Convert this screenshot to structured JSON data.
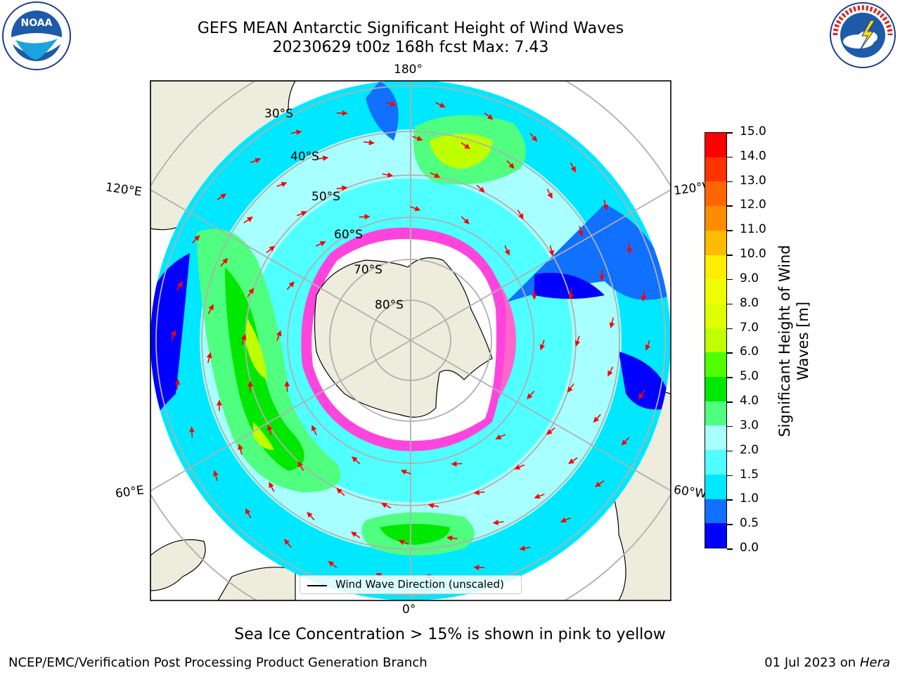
{
  "title": {
    "line1": "GEFS MEAN Antarctic Significant Height of Wind Waves",
    "line2": "20230629 t00z 168h fcst   Max: 7.43"
  },
  "logos": {
    "left": "noaa-logo",
    "right": "national-weather-service-logo"
  },
  "map": {
    "longitude_labels": [
      "180°",
      "120°E",
      "120°W",
      "60°E",
      "60°W",
      "0°"
    ],
    "latitude_labels": [
      "30°S",
      "40°S",
      "50°S",
      "60°S",
      "70°S",
      "80°S"
    ],
    "ocean_color": "#ffffff",
    "land_color": "#eeecdc"
  },
  "colorbar": {
    "label": "Significant Height of Wind Waves [m]",
    "ticks": [
      "0.0",
      "0.5",
      "1.0",
      "1.5",
      "2.0",
      "3.0",
      "4.0",
      "5.0",
      "6.0",
      "7.0",
      "8.0",
      "9.0",
      "10.0",
      "11.0",
      "12.0",
      "13.0",
      "14.0",
      "15.0"
    ],
    "colors": [
      "#0000ff",
      "#1070ff",
      "#00e8ff",
      "#50ffff",
      "#a8ffff",
      "#50ff80",
      "#00e800",
      "#50ff00",
      "#c0ff00",
      "#e0ff00",
      "#f0ff00",
      "#ffee00",
      "#ffbb00",
      "#ff8c00",
      "#ff6600",
      "#ff3300",
      "#ff0000"
    ]
  },
  "legend": {
    "label": "Wind Wave Direction (unscaled)"
  },
  "ice_note": "Sea Ice Concentration > 15% is shown in pink to yellow",
  "footer": {
    "left": "NCEP/EMC/Verification Post Processing Product Generation Branch",
    "right_date": "01 Jul 2023 on ",
    "right_machine": "Hera"
  }
}
